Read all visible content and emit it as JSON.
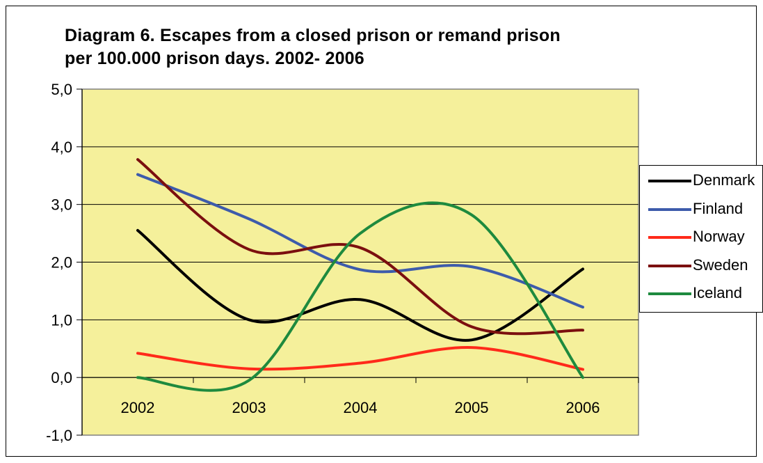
{
  "chart_data": {
    "type": "line",
    "title": "Diagram 6. Escapes from a closed prison or remand prison\nper 100.000 prison days. 2002- 2006",
    "categories": [
      "2002",
      "2003",
      "2004",
      "2005",
      "2006"
    ],
    "y_ticks": [
      "-1,0",
      "0,0",
      "1,0",
      "2,0",
      "3,0",
      "4,0",
      "5,0"
    ],
    "ylim": [
      -1,
      5
    ],
    "grid": true,
    "legend_position": "right",
    "plot_background": "#f5f09b",
    "series": [
      {
        "name": "Denmark",
        "color": "#000000",
        "values": [
          2.55,
          1.0,
          1.35,
          0.65,
          1.88
        ]
      },
      {
        "name": "Finland",
        "color": "#3d5bab",
        "values": [
          3.52,
          2.75,
          1.87,
          1.92,
          1.22
        ]
      },
      {
        "name": "Norway",
        "color": "#ff2a1a",
        "values": [
          0.42,
          0.15,
          0.25,
          0.52,
          0.14
        ]
      },
      {
        "name": "Sweden",
        "color": "#7b0f0f",
        "values": [
          3.78,
          2.22,
          2.25,
          0.88,
          0.82
        ]
      },
      {
        "name": "Iceland",
        "color": "#1e8a3e",
        "values": [
          0.0,
          -0.05,
          2.5,
          2.82,
          0.0
        ]
      }
    ]
  }
}
